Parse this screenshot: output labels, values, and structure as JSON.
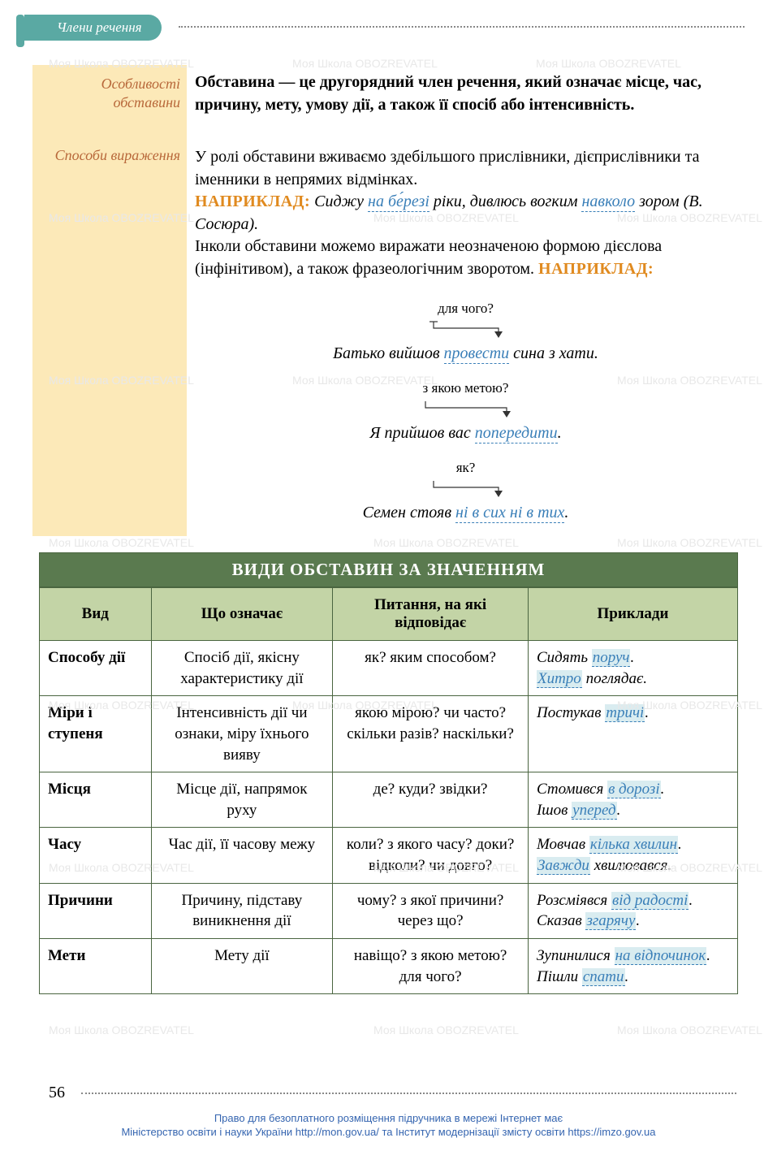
{
  "header": {
    "tab_label": "Члени речення"
  },
  "sidebar": {
    "label1": "Особливості обставини",
    "label2": "Способи вираження"
  },
  "definition": {
    "text": "Обставина — це другорядний член речення, який означає місце, час, причину, мету, умову дії, а також її спосіб або інтенсивність."
  },
  "usage": {
    "intro": "У ролі обставини вживаємо здебільшого прислівники, дієприслівники та іменники в непрямих відмінках.",
    "label_example": "НАПРИКЛАД:",
    "ex1_pre": "Сиджу ",
    "ex1_u1": "на бе́резі",
    "ex1_mid": " ріки, дивлюсь вогким ",
    "ex1_u2": "навколо",
    "ex1_post": " зором (В. Сосюра).",
    "para2": "Інколи обставини можемо виражати неозначеною формою дієслова (інфінітивом), а також фразеологічним зворотом. ",
    "label_example2": "НАПРИКЛАД:"
  },
  "examples": [
    {
      "question": "для чого?",
      "pre": "Батько вийшов ",
      "underlined": "провести",
      "post": " сина з хати."
    },
    {
      "question": "з якою метою?",
      "pre": "Я прийшов вас ",
      "underlined": "попередити",
      "post": "."
    },
    {
      "question": "як?",
      "pre": "Семен стояв ",
      "underlined": "ні в сих ні в тих",
      "post": "."
    }
  ],
  "table": {
    "title": "ВИДИ ОБСТАВИН ЗА ЗНАЧЕННЯМ",
    "headers": [
      "Вид",
      "Що означає",
      "Питання, на які відповідає",
      "Приклади"
    ],
    "rows": [
      {
        "vid": "Способу дії",
        "meaning": "Спосіб дії, якісну характеристику дії",
        "questions": "як? яким способом?",
        "examples_html": "Сидять <span class='hl'>поруч</span>.<br><span class='hl'>Хитро</span> поглядає."
      },
      {
        "vid": "Міри і ступеня",
        "meaning": "Інтенсивність дії чи ознаки, міру їхнього вияву",
        "questions": "якою мірою? чи часто? скільки разів? наскільки?",
        "examples_html": "Постукав <span class='hl'>тричі</span>."
      },
      {
        "vid": "Місця",
        "meaning": "Місце дії, напрямок руху",
        "questions": "де? куди? звідки?",
        "examples_html": "Стомився <span class='hl'>в дорозі</span>.<br>Ішов <span class='hl'>уперед</span>."
      },
      {
        "vid": "Часу",
        "meaning": "Час дії, її часову межу",
        "questions": "коли? з якого часу? доки? відколи? чи довго?",
        "examples_html": "Мовчав <span class='hl'>кілька хвилин</span>.<br><span class='hl'>Завжди</span> хвилювався."
      },
      {
        "vid": "Причини",
        "meaning": "Причину, підставу виникнення дії",
        "questions": "чому? з якої причини? через що?",
        "examples_html": "Розсміявся <span class='hl'>від радості</span>.<br>Сказав <span class='hl'>згарячу</span>."
      },
      {
        "vid": "Мети",
        "meaning": "Мету дії",
        "questions": "навіщо? з якою метою? для чого?",
        "examples_html": "Зупинилися <span class='hl'>на відпочинок</span>.<br>Пішли <span class='hl'>спати</span>."
      }
    ]
  },
  "page_number": "56",
  "footer": {
    "line1": "Право для безоплатного розміщення підручника в мережі Інтернет має",
    "line2": "Міністерство освіти і науки України http://mon.gov.ua/ та Інститут модернізації змісту освіти https://imzo.gov.ua"
  },
  "watermark_text": "Моя Школа  OBOZREVATEL",
  "colors": {
    "teal": "#5aa9a3",
    "sidebar_bg": "#fce9b8",
    "sidebar_text": "#b8683a",
    "orange": "#e08a1f",
    "blue": "#3a7fb8",
    "table_header_bg": "#5a7a4f",
    "table_subheader_bg": "#c3d4a6",
    "table_border": "#4a6540"
  }
}
